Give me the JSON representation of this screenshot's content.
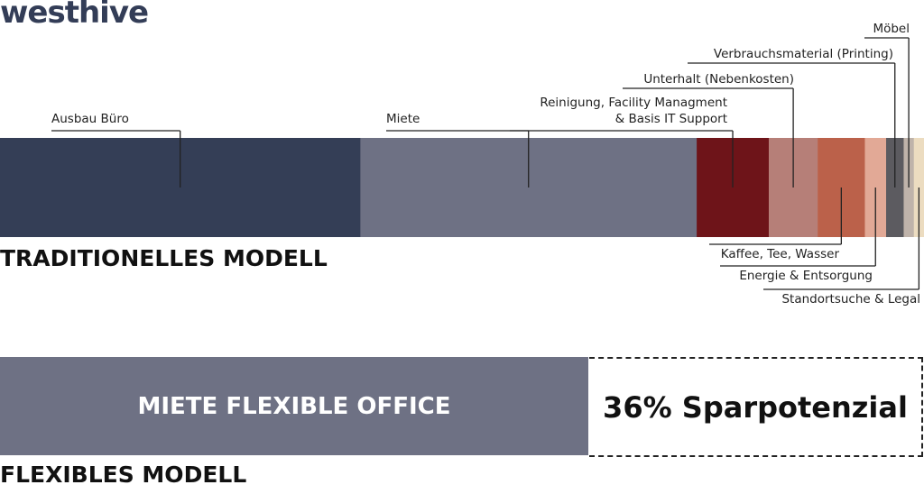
{
  "logo": "westhive",
  "chart_data": [
    {
      "type": "bar",
      "orientation": "horizontal-stacked",
      "title": "TRADITIONELLES MODELL",
      "categories": [
        "Ausbau Büro",
        "Miete",
        "Reinigung, Facility Managment & Basis IT Support",
        "Unterhalt (Nebenkosten)",
        "Kaffee, Tee, Wasser",
        "Energie & Entsorgung",
        "Verbrauchsmaterial (Printing)",
        "Möbel",
        "Standortsuche & Legal"
      ],
      "label_lines": [
        [
          "Ausbau Büro"
        ],
        [
          "Miete"
        ],
        [
          "Reinigung, Facility Managment",
          "& Basis IT Support"
        ],
        [
          "Unterhalt (Nebenkosten)"
        ],
        [
          "Kaffee, Tee, Wasser"
        ],
        [
          "Energie & Entsorgung"
        ],
        [
          "Verbrauchsmaterial (Printing)"
        ],
        [
          "Möbel"
        ],
        [
          "Standortsuche & Legal"
        ]
      ],
      "values": [
        39,
        36.4,
        7.8,
        5.3,
        5.1,
        2.3,
        1.9,
        1.1,
        1.1
      ],
      "colors": [
        "#343e56",
        "#6e7184",
        "#6e1419",
        "#b67f78",
        "#bb614a",
        "#e2a996",
        "#5c5b60",
        "#bfb3aa",
        "#ecdcc0"
      ],
      "xlim": [
        0,
        100
      ]
    },
    {
      "type": "bar",
      "orientation": "horizontal-stacked",
      "title": "FLEXIBLES MODELL",
      "segment_label": "MIETE FLEXIBLE OFFICE",
      "savings_label": "36% Sparpotenzial",
      "values": [
        64,
        36
      ],
      "colors": [
        "#6e7184",
        "none"
      ],
      "xlim": [
        0,
        100
      ]
    }
  ]
}
